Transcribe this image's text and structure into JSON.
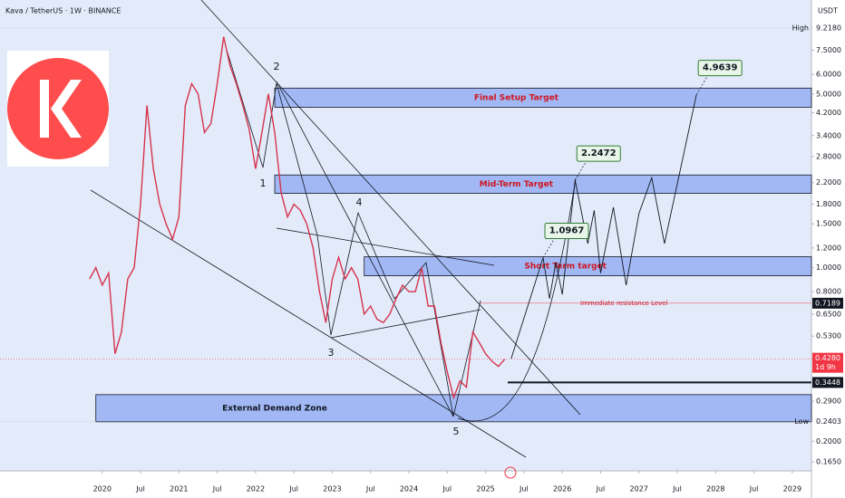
{
  "chart_data": {
    "type": "line",
    "title": "Kava / TetherUS · 1W · BINANCE",
    "currency": "USDT",
    "log_scale": true,
    "xlim": [
      "2018-09",
      "2029-04"
    ],
    "ylim": [
      0.152,
      11.95
    ],
    "xticks": [
      {
        "value": "2020-01",
        "label": "2020"
      },
      {
        "value": "2020-07",
        "label": "Jul"
      },
      {
        "value": "2021-01",
        "label": "2021"
      },
      {
        "value": "2021-07",
        "label": "Jul"
      },
      {
        "value": "2022-01",
        "label": "2022"
      },
      {
        "value": "2022-07",
        "label": "Jul"
      },
      {
        "value": "2023-01",
        "label": "2023"
      },
      {
        "value": "2023-07",
        "label": "Jul"
      },
      {
        "value": "2024-01",
        "label": "2024"
      },
      {
        "value": "2024-07",
        "label": "Jul"
      },
      {
        "value": "2025-01",
        "label": "2025"
      },
      {
        "value": "2025-07",
        "label": "Jul"
      },
      {
        "value": "2026-01",
        "label": "2026"
      },
      {
        "value": "2026-07",
        "label": "Jul"
      },
      {
        "value": "2027-01",
        "label": "2027"
      },
      {
        "value": "2027-07",
        "label": "Jul"
      },
      {
        "value": "2028-01",
        "label": "2028"
      },
      {
        "value": "2028-07",
        "label": "Jul"
      },
      {
        "value": "2029-01",
        "label": "2029"
      }
    ],
    "yticks": [
      {
        "value": 7.5,
        "label": "7.5000"
      },
      {
        "value": 6,
        "label": "6.0000"
      },
      {
        "value": 5,
        "label": "5.0000"
      },
      {
        "value": 4.2,
        "label": "4.2000"
      },
      {
        "value": 3.4,
        "label": "3.4000"
      },
      {
        "value": 2.8,
        "label": "2.8000"
      },
      {
        "value": 2.2,
        "label": "2.2000"
      },
      {
        "value": 1.8,
        "label": "1.8000"
      },
      {
        "value": 1.5,
        "label": "1.5000"
      },
      {
        "value": 1.2,
        "label": "1.2000"
      },
      {
        "value": 1,
        "label": "1.0000"
      },
      {
        "value": 0.8,
        "label": "0.8000"
      },
      {
        "value": 0.65,
        "label": "0.6500"
      },
      {
        "value": 0.53,
        "label": "0.5300"
      },
      {
        "value": 0.29,
        "label": "0.2900"
      },
      {
        "value": 0.2,
        "label": "0.2000"
      },
      {
        "value": 0.165,
        "label": "0.1650"
      }
    ],
    "high": {
      "value": 9.218,
      "label": "9.2180",
      "tag": "High"
    },
    "low": {
      "value": 0.2403,
      "label": "0.2403",
      "tag": "Low"
    },
    "price_level": {
      "value": 0.428,
      "label": "0.4280",
      "countdown": "1d 9h",
      "color": "#f23645"
    },
    "resistance": {
      "value": 0.7189,
      "label": "0.7189",
      "text": "Immediate resistance Level"
    },
    "support": {
      "value": 0.3448,
      "label": "0.3448"
    },
    "zones": [
      {
        "name": "Final Setup Target",
        "from": 4.42,
        "to": 5.28,
        "start": "2022-04",
        "color": "#d0141f"
      },
      {
        "name": "Mid-Term Target",
        "from": 1.99,
        "to": 2.36,
        "start": "2022-04",
        "color": "#d0141f"
      },
      {
        "name": "Short Term target",
        "from": 0.927,
        "to": 1.106,
        "start": "2023-06",
        "color": "#d0141f"
      },
      {
        "name": "External Demand Zone",
        "from": 0.2395,
        "to": 0.308,
        "start": "2019-12",
        "color": "#131722"
      }
    ],
    "targets": [
      {
        "x": "2025-10",
        "value": 1.0967
      },
      {
        "x": "2026-03",
        "value": 2.2472
      },
      {
        "x": "2027-10",
        "value": 4.9639
      }
    ],
    "pivots": [
      "1",
      "2",
      "3",
      "4",
      "5"
    ],
    "series": [
      {
        "color": "#d6334b",
        "x": [
          "2019-11",
          "2019-12",
          "2020-01",
          "2020-02",
          "2020-03",
          "2020-04",
          "2020-05",
          "2020-06",
          "2020-07",
          "2020-08",
          "2020-09",
          "2020-10",
          "2020-11",
          "2020-12",
          "2021-01",
          "2021-02",
          "2021-03",
          "2021-04",
          "2021-05",
          "2021-06",
          "2021-07",
          "2021-08",
          "2021-09",
          "2021-10",
          "2021-11",
          "2021-12",
          "2022-01",
          "2022-02",
          "2022-03",
          "2022-04",
          "2022-05",
          "2022-06",
          "2022-07",
          "2022-08",
          "2022-09",
          "2022-10",
          "2022-11",
          "2022-12",
          "2023-01",
          "2023-02",
          "2023-03",
          "2023-04",
          "2023-05",
          "2023-06",
          "2023-07",
          "2023-08",
          "2023-09",
          "2023-10",
          "2023-11",
          "2023-12",
          "2024-01",
          "2024-02",
          "2024-03",
          "2024-04",
          "2024-05",
          "2024-06",
          "2024-07",
          "2024-08",
          "2024-09",
          "2024-10",
          "2024-11",
          "2024-12",
          "2025-01",
          "2025-02",
          "2025-03",
          "2025-04"
        ],
        "values": [
          0.9,
          1.0,
          0.85,
          0.95,
          0.45,
          0.55,
          0.9,
          1.0,
          1.8,
          4.5,
          2.5,
          1.8,
          1.5,
          1.3,
          1.6,
          4.5,
          5.5,
          5.0,
          3.5,
          3.8,
          5.5,
          8.5,
          6.5,
          5.5,
          4.5,
          3.6,
          2.5,
          3.5,
          5.0,
          3.5,
          2.0,
          1.6,
          1.8,
          1.7,
          1.5,
          1.2,
          0.8,
          0.6,
          0.9,
          1.1,
          0.9,
          1.0,
          0.9,
          0.65,
          0.7,
          0.62,
          0.6,
          0.65,
          0.75,
          0.85,
          0.8,
          0.8,
          1.0,
          0.7,
          0.7,
          0.5,
          0.38,
          0.3,
          0.35,
          0.33,
          0.55,
          0.5,
          0.45,
          0.42,
          0.4,
          0.428
        ]
      },
      {
        "color": "#131722",
        "x": [
          "2025-05",
          "2025-10",
          "2025-11",
          "2025-12",
          "2026-01",
          "2026-03",
          "2026-05",
          "2026-06",
          "2026-07",
          "2026-09",
          "2026-11",
          "2027-01",
          "2027-03",
          "2027-05",
          "2027-10"
        ],
        "values": [
          0.43,
          1.0967,
          0.75,
          1.05,
          0.78,
          2.2472,
          1.25,
          1.7,
          0.95,
          1.75,
          0.85,
          1.65,
          2.3,
          1.25,
          4.9639
        ]
      }
    ]
  }
}
